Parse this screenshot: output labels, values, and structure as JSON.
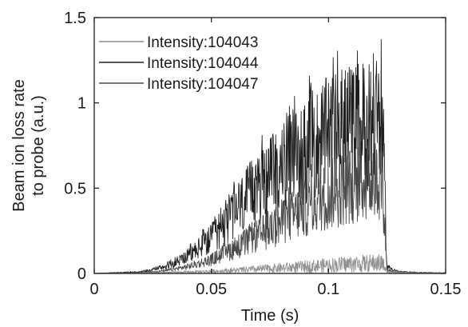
{
  "chart_data": {
    "type": "line",
    "xlabel": "Time (s)",
    "ylabel_lines": [
      "Beam ion loss rate",
      "to probe (a.u.)"
    ],
    "xlim": [
      0,
      0.15
    ],
    "ylim": [
      0,
      1.5
    ],
    "xticks": [
      {
        "value": 0,
        "label": "0"
      },
      {
        "value": 0.05,
        "label": "0.05"
      },
      {
        "value": 0.1,
        "label": "0.1"
      },
      {
        "value": 0.15,
        "label": "0.15"
      }
    ],
    "yticks": [
      {
        "value": 0,
        "label": "0"
      },
      {
        "value": 0.5,
        "label": "0.5"
      },
      {
        "value": 1,
        "label": "1"
      },
      {
        "value": 1.5,
        "label": "1.5"
      }
    ],
    "grid": false,
    "legend_position": "top-left",
    "series": [
      {
        "name": "Intensity:104043",
        "color": "#8f8f8f",
        "x": [
          0,
          0.02,
          0.03,
          0.04,
          0.05,
          0.06,
          0.07,
          0.08,
          0.09,
          0.1,
          0.11,
          0.12,
          0.123,
          0.125,
          0.13,
          0.14,
          0.15
        ],
        "y": [
          0,
          0.003,
          0.005,
          0.008,
          0.012,
          0.018,
          0.025,
          0.032,
          0.04,
          0.048,
          0.055,
          0.06,
          0.06,
          0.01,
          0.005,
          0.003,
          0.002
        ]
      },
      {
        "name": "Intensity:104044",
        "color": "#1e1e1e",
        "x": [
          0,
          0.02,
          0.03,
          0.04,
          0.05,
          0.06,
          0.07,
          0.08,
          0.09,
          0.1,
          0.11,
          0.12,
          0.123,
          0.125,
          0.13,
          0.14,
          0.15
        ],
        "y": [
          0,
          0.01,
          0.04,
          0.1,
          0.2,
          0.36,
          0.5,
          0.62,
          0.72,
          0.8,
          0.86,
          0.88,
          0.88,
          0.04,
          0.01,
          0.005,
          0.003
        ]
      },
      {
        "name": "Intensity:104047",
        "color": "#4a4a4a",
        "x": [
          0,
          0.02,
          0.03,
          0.04,
          0.05,
          0.06,
          0.07,
          0.08,
          0.09,
          0.1,
          0.11,
          0.12,
          0.123,
          0.125,
          0.13,
          0.14,
          0.15
        ],
        "y": [
          0,
          0.005,
          0.015,
          0.04,
          0.08,
          0.15,
          0.22,
          0.3,
          0.38,
          0.46,
          0.52,
          0.56,
          0.56,
          0.02,
          0.008,
          0.004,
          0.002
        ]
      }
    ]
  }
}
